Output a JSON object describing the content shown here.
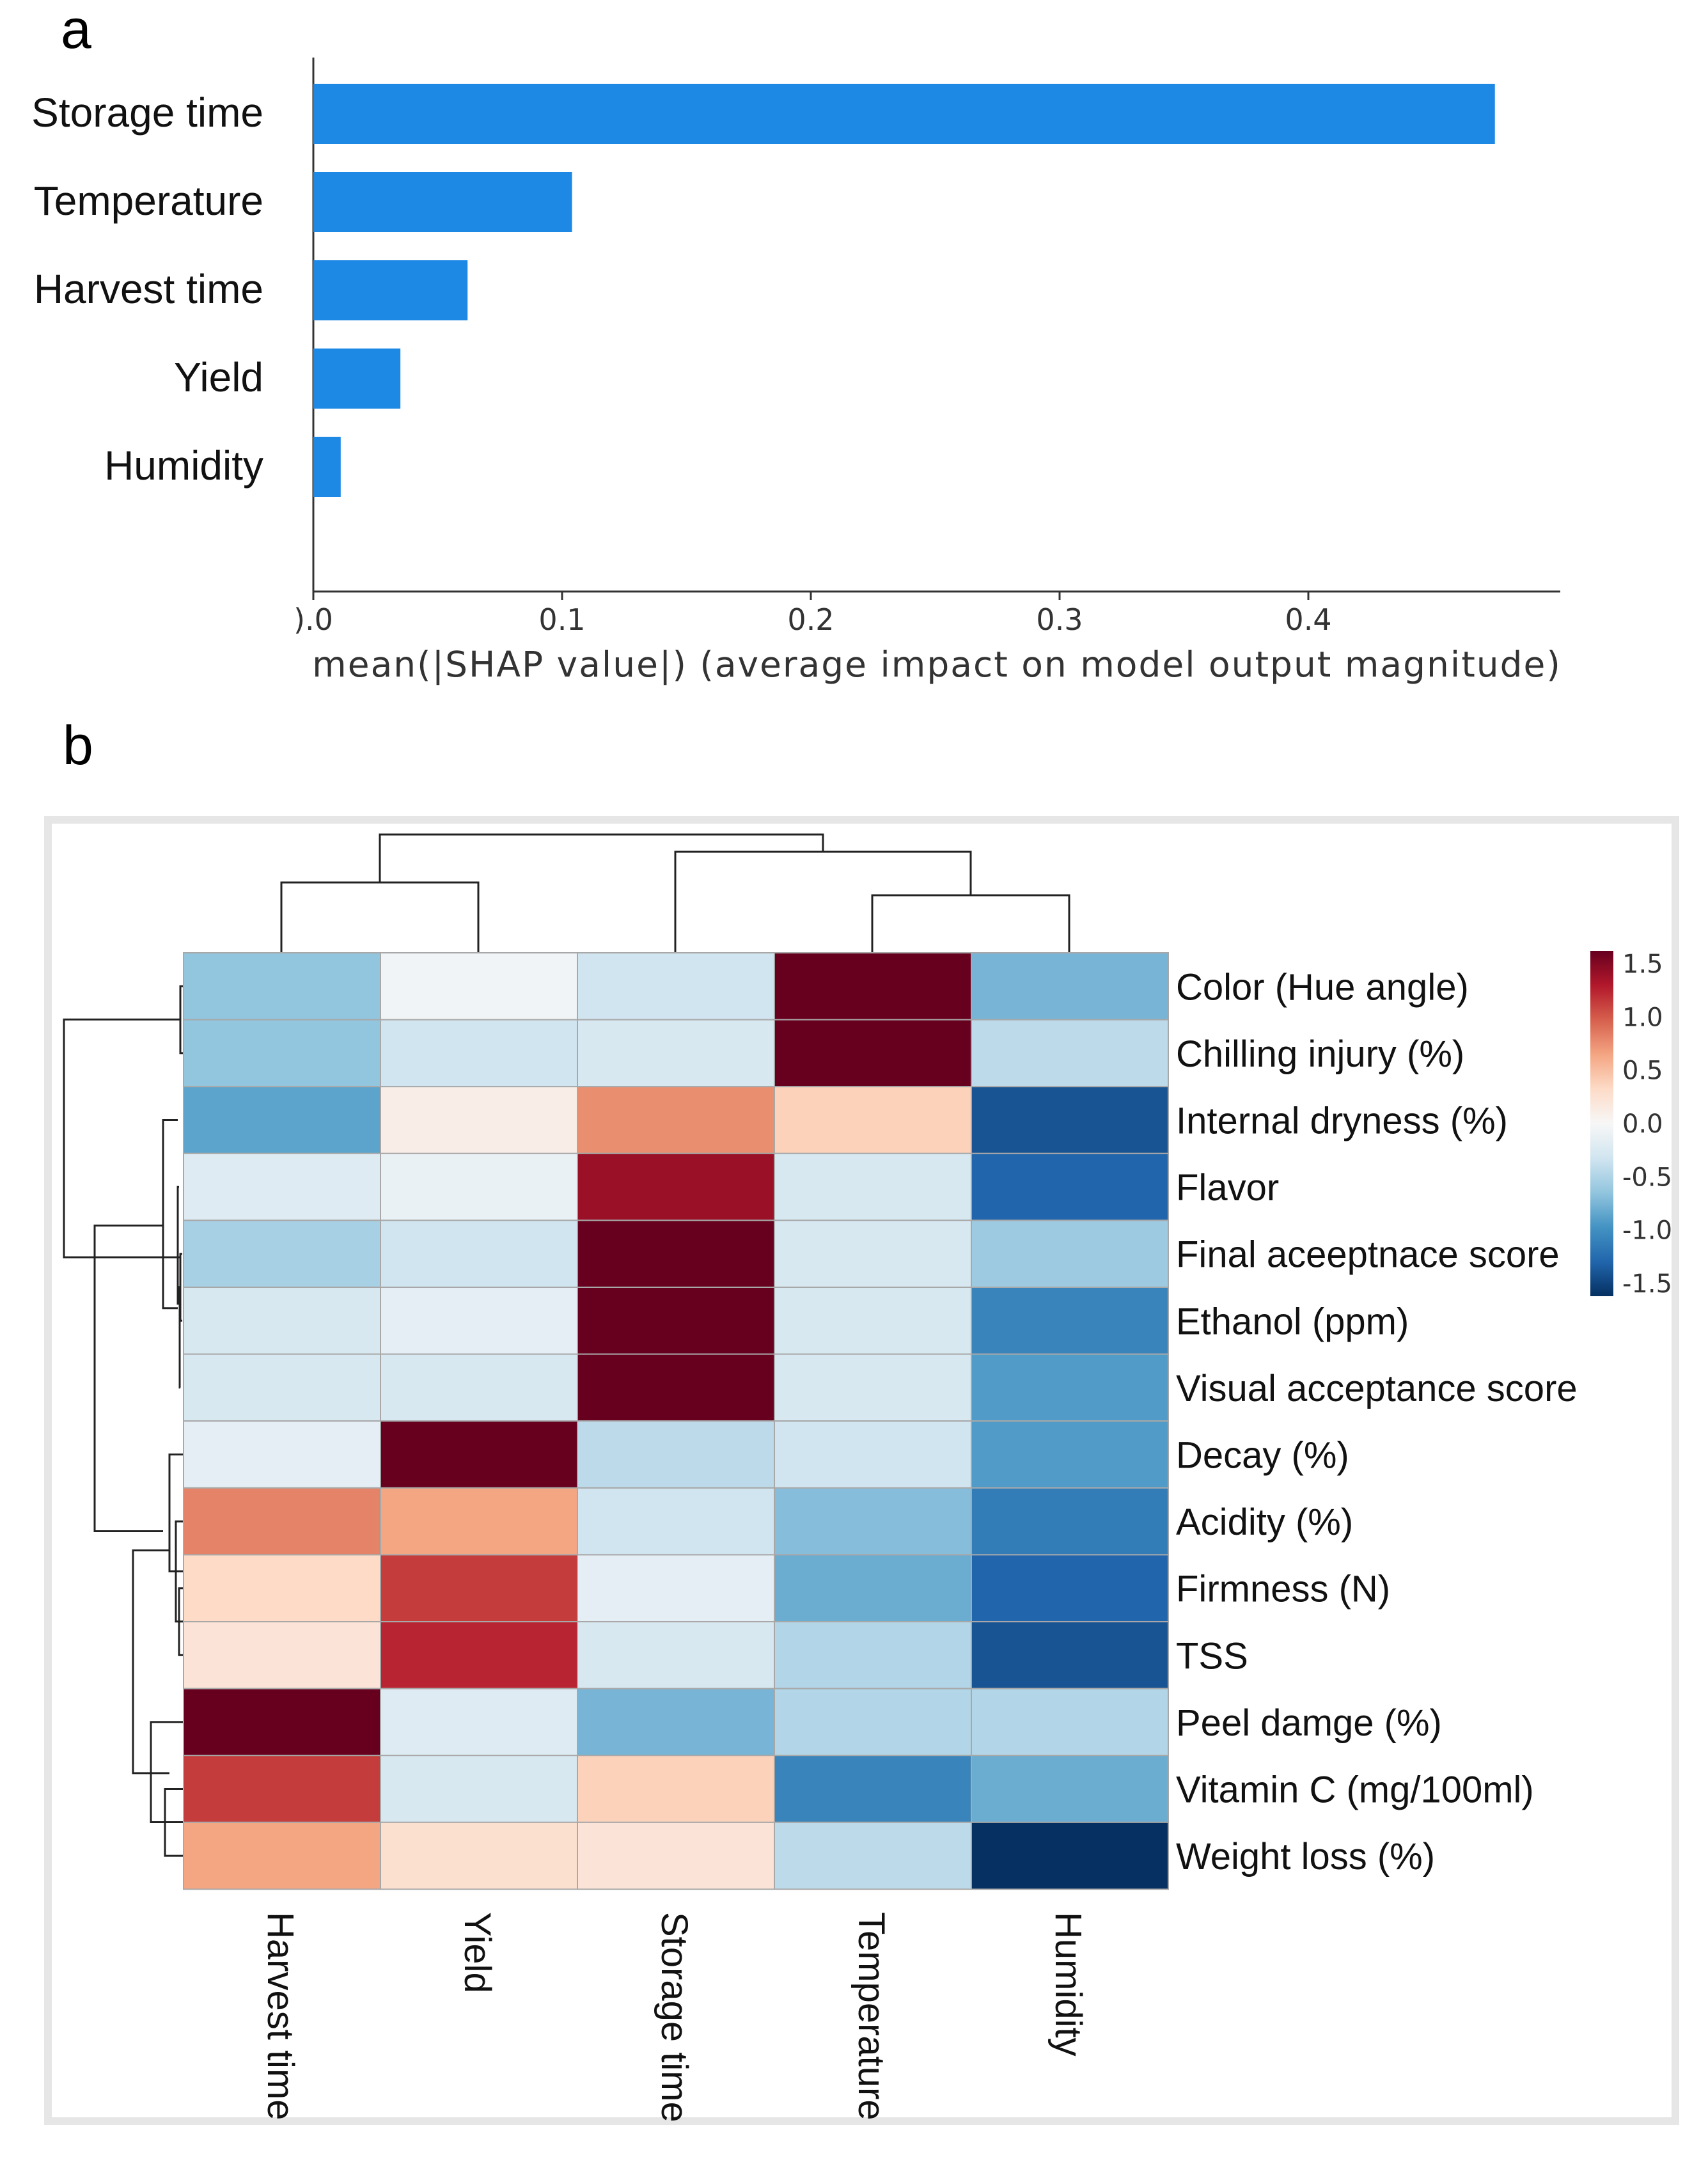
{
  "panels": {
    "a": "a",
    "b": "b"
  },
  "chart_data": [
    {
      "type": "bar",
      "orientation": "horizontal",
      "categories": [
        "Storage time",
        "Temperature",
        "Harvest time",
        "Yield",
        "Humidity"
      ],
      "values": [
        0.475,
        0.104,
        0.062,
        0.035,
        0.011
      ],
      "xlabel": "mean(|SHAP value|) (average impact on model output magnitude)",
      "xlim": [
        0.0,
        0.5
      ],
      "xticks": [
        0.0,
        0.1,
        0.2,
        0.3,
        0.4
      ],
      "xtick_labels": [
        ").0",
        "0.1",
        "0.2",
        "0.3",
        "0.4"
      ],
      "bar_color": "#1E88E5"
    },
    {
      "type": "heatmap",
      "columns": [
        "Harvest time",
        "Yield",
        "Storage time",
        "Temperature",
        "Humidity"
      ],
      "rows": [
        "Color (Hue angle)",
        "Chilling injury (%)",
        "Internal dryness (%)",
        "Flavor",
        "Final aceeptnace score",
        "Ethanol (ppm)",
        "Visual acceptance score",
        "Decay (%)",
        "Acidity (%)",
        "Firmness (N)",
        "TSS",
        "Peel damge (%)",
        "Vitamin C (mg/100ml)",
        "Weight loss (%)"
      ],
      "values": [
        [
          -0.6,
          -0.05,
          -0.3,
          1.5,
          -0.7
        ],
        [
          -0.6,
          -0.3,
          -0.25,
          1.6,
          -0.4
        ],
        [
          -0.8,
          0.1,
          0.7,
          0.35,
          -1.3
        ],
        [
          -0.2,
          -0.1,
          1.3,
          -0.25,
          -1.2
        ],
        [
          -0.5,
          -0.3,
          1.7,
          -0.25,
          -0.55
        ],
        [
          -0.25,
          -0.15,
          1.55,
          -0.25,
          -1.0
        ],
        [
          -0.25,
          -0.25,
          1.6,
          -0.25,
          -0.85
        ],
        [
          -0.15,
          1.65,
          -0.4,
          -0.3,
          -0.85
        ],
        [
          0.75,
          0.6,
          -0.3,
          -0.65,
          -1.05
        ],
        [
          0.3,
          1.05,
          -0.15,
          -0.75,
          -1.2
        ],
        [
          0.2,
          1.15,
          -0.25,
          -0.45,
          -1.3
        ],
        [
          1.65,
          -0.2,
          -0.7,
          -0.45,
          -0.45
        ],
        [
          1.05,
          -0.25,
          0.35,
          -1.0,
          -0.75
        ],
        [
          0.6,
          0.25,
          0.2,
          -0.4,
          -1.55
        ]
      ],
      "colorbar": {
        "range": [
          -1.5,
          1.5
        ],
        "tick_labels": [
          "1.5",
          "1.0",
          "0.5",
          "0.0",
          "-0.5",
          "-1.0",
          "-1.5"
        ],
        "palette": [
          "#053061",
          "#2166AC",
          "#4393C3",
          "#92C5DE",
          "#D1E5F0",
          "#F7F7F7",
          "#FDDBC7",
          "#F4A582",
          "#D6604D",
          "#B2182B",
          "#67001F"
        ]
      },
      "dendrograms": {
        "columns": "top",
        "rows": "left"
      }
    }
  ]
}
